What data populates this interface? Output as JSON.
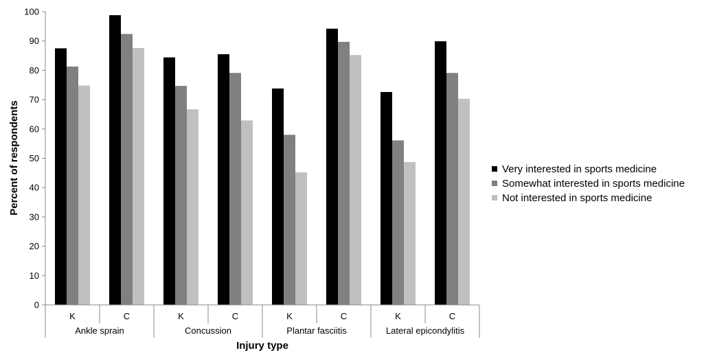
{
  "chart_data": {
    "type": "bar",
    "title": "",
    "xlabel": "Injury type",
    "ylabel": "Percent of respondents",
    "ylim": [
      0,
      100
    ],
    "yticks": [
      0,
      10,
      20,
      30,
      40,
      50,
      60,
      70,
      80,
      90,
      100
    ],
    "grid": false,
    "legend_position": "right",
    "groups": [
      {
        "label": "Ankle sprain",
        "sub": [
          "K",
          "C"
        ]
      },
      {
        "label": "Concussion",
        "sub": [
          "K",
          "C"
        ]
      },
      {
        "label": "Plantar fasciitis",
        "sub": [
          "K",
          "C"
        ]
      },
      {
        "label": "Lateral epicondylitis",
        "sub": [
          "K",
          "C"
        ]
      }
    ],
    "categories": [
      "Ankle sprain K",
      "Ankle sprain C",
      "Concussion K",
      "Concussion C",
      "Plantar fasciitis K",
      "Plantar fasciitis C",
      "Lateral epicondylitis K",
      "Lateral epicondylitis C"
    ],
    "series": [
      {
        "name": "Very interested in sports medicine",
        "color": "#000000",
        "values": [
          87.5,
          98.8,
          84.4,
          85.5,
          73.8,
          94.2,
          72.6,
          89.9
        ]
      },
      {
        "name": "Somewhat interested in sports medicine",
        "color": "#808080",
        "values": [
          81.3,
          92.4,
          74.7,
          79.1,
          58.0,
          89.7,
          56.1,
          79.1
        ]
      },
      {
        "name": "Not interested in sports medicine",
        "color": "#c0c0c0",
        "values": [
          74.8,
          87.6,
          66.7,
          62.9,
          45.2,
          85.2,
          48.7,
          70.3
        ]
      }
    ]
  }
}
